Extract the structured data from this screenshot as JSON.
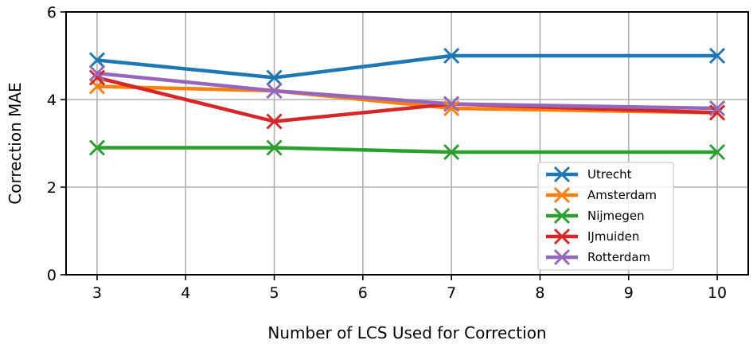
{
  "chart_data": {
    "type": "line",
    "title": "",
    "xlabel": "Number of LCS Used for Correction",
    "ylabel": "Correction MAE",
    "x": [
      3,
      5,
      7,
      10
    ],
    "xlim": [
      2.65,
      10.35
    ],
    "ylim": [
      0,
      6
    ],
    "xticks": [
      3,
      4,
      5,
      6,
      7,
      8,
      9,
      10
    ],
    "yticks": [
      0,
      2,
      4,
      6
    ],
    "grid": true,
    "legend_position": "lower-right",
    "marker": "x",
    "series": [
      {
        "name": "Utrecht",
        "color": "#1f77b4",
        "values": [
          4.9,
          4.5,
          5.0,
          5.0
        ]
      },
      {
        "name": "Amsterdam",
        "color": "#ff7f0e",
        "values": [
          4.3,
          4.2,
          3.8,
          3.7
        ]
      },
      {
        "name": "Nijmegen",
        "color": "#2ca02c",
        "values": [
          2.9,
          2.9,
          2.8,
          2.8
        ]
      },
      {
        "name": "IJmuiden",
        "color": "#d62728",
        "values": [
          4.5,
          3.5,
          3.9,
          3.7
        ]
      },
      {
        "name": "Rotterdam",
        "color": "#9467bd",
        "values": [
          4.6,
          4.2,
          3.9,
          3.8
        ]
      }
    ]
  }
}
